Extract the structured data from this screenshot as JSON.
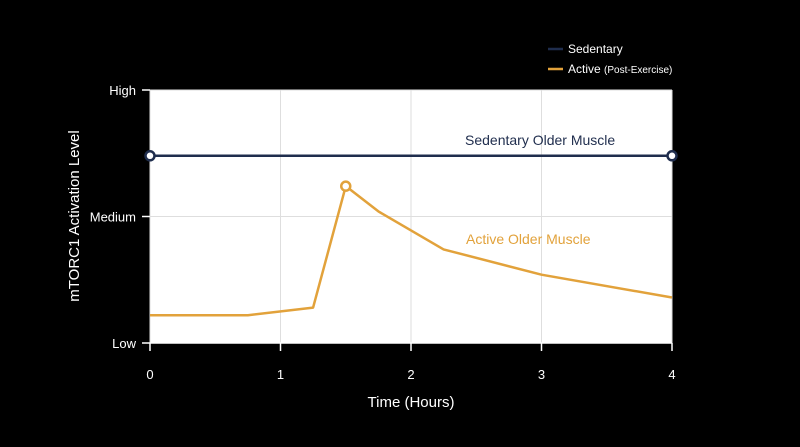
{
  "chart_data": {
    "type": "line",
    "xlabel": "Time (Hours)",
    "ylabel": "mTORC1 Activation Level",
    "xlim": [
      0,
      4
    ],
    "ylim": [
      0,
      1
    ],
    "x_ticks": [
      "0",
      "1",
      "2",
      "3",
      "4"
    ],
    "x_tick_values": [
      0,
      1,
      2,
      3,
      4
    ],
    "y_ticks": [
      "Low",
      "Medium",
      "High"
    ],
    "y_tick_values": [
      0,
      0.5,
      1
    ],
    "grid": true,
    "legend_position": "top-right",
    "legend": [
      {
        "label": "Sedentary",
        "note": "",
        "color": "#1f2d4d"
      },
      {
        "label": "Active",
        "note": "(Post-Exercise)",
        "color": "#e2a23b"
      }
    ],
    "series": [
      {
        "key": "sedentary",
        "color": "#1f2d4d",
        "x": [
          0,
          4
        ],
        "y": [
          0.74,
          0.74
        ],
        "marker_indices": [
          0,
          1
        ],
        "annotation": "Sedentary Older Muscle"
      },
      {
        "key": "active",
        "color": "#e2a23b",
        "x": [
          0,
          0.75,
          1.25,
          1.5,
          1.75,
          2.25,
          3,
          4
        ],
        "y": [
          0.11,
          0.11,
          0.14,
          0.62,
          0.52,
          0.37,
          0.27,
          0.18
        ],
        "marker_indices": [
          3
        ],
        "annotation": "Active Older Muscle"
      }
    ]
  }
}
